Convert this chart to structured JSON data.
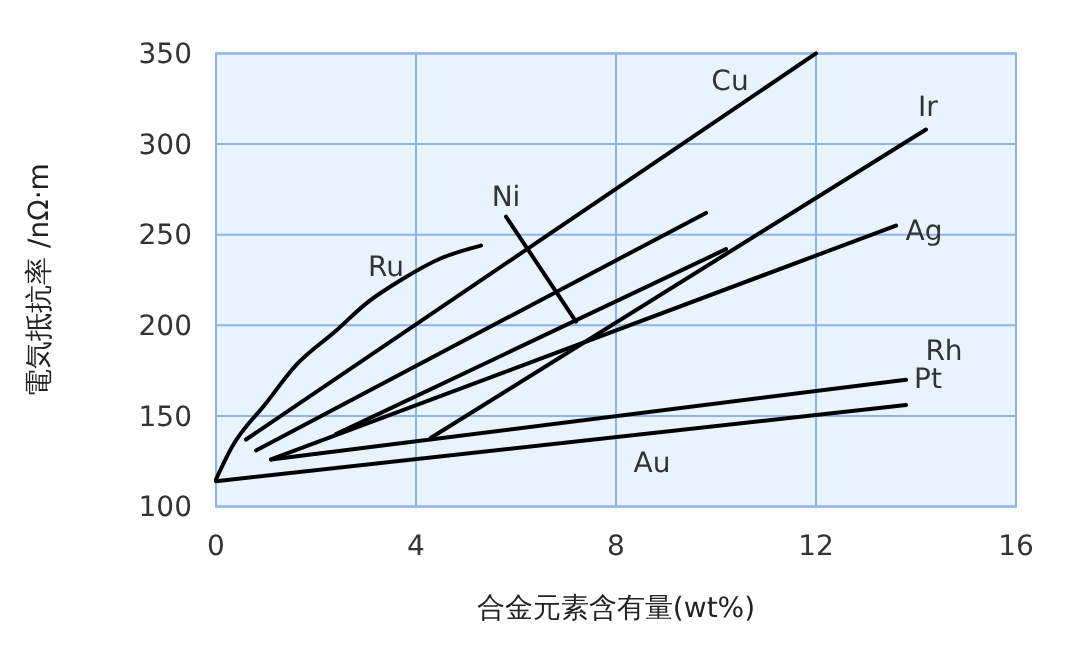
{
  "chart_data": {
    "type": "line",
    "xlabel": "合金元素含有量(wt%)",
    "ylabel": "電気抵抗率 /nΩ·m",
    "xlim": [
      0,
      16
    ],
    "xticks": [
      0,
      4,
      8,
      12,
      16
    ],
    "ylim": [
      100,
      350
    ],
    "yticks": [
      100,
      150,
      200,
      250,
      300,
      350
    ],
    "grid": true,
    "marker": "none",
    "line_style": "solid",
    "series": [
      {
        "color": "#000000",
        "x": [
          0,
          0.3,
          1.0,
          1.6,
          2.4,
          3.0,
          3.7,
          4.5,
          5.3
        ],
        "values": [
          115,
          132,
          157,
          178,
          197,
          212,
          225,
          237,
          244
        ]
      },
      {
        "color": "#000000",
        "x": [
          0.6,
          12
        ],
        "values": [
          137,
          350
        ]
      },
      {
        "color": "#000000",
        "x": [
          0.8,
          9.8
        ],
        "values": [
          131,
          262
        ]
      },
      {
        "color": "#000000",
        "x": [
          2.4,
          10.2
        ],
        "values": [
          140,
          242
        ]
      },
      {
        "color": "#000000",
        "x": [
          4.3,
          14.2
        ],
        "values": [
          138,
          308
        ]
      },
      {
        "color": "#000000",
        "x": [
          1.1,
          13.6
        ],
        "values": [
          126,
          255
        ]
      },
      {
        "color": "#000000",
        "x": [
          1.1,
          13.8
        ],
        "values": [
          126,
          170
        ]
      },
      {
        "color": "#000000",
        "x": [
          0,
          13.8
        ],
        "values": [
          114,
          156
        ]
      },
      {
        "color": "#000000",
        "x": [
          5.8,
          7.2
        ],
        "values": [
          260,
          202
        ]
      }
    ],
    "annotations": [
      "Cu",
      "Ir",
      "Ag",
      "Rh",
      "Pt",
      "Au",
      "Ru",
      "Ni"
    ]
  }
}
